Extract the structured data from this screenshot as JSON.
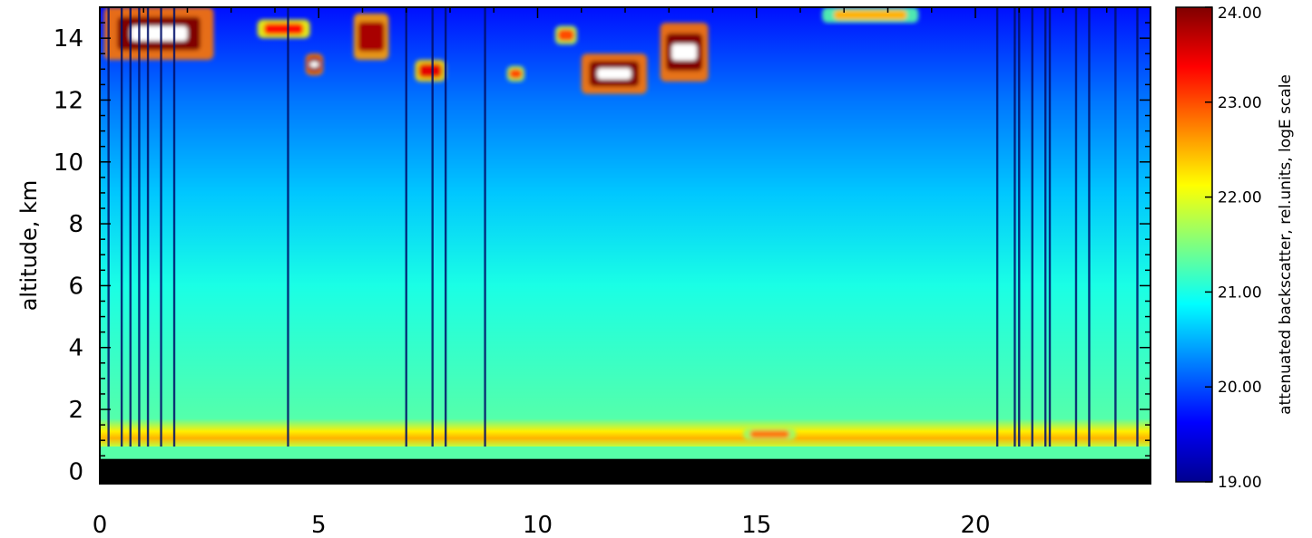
{
  "chart_data": {
    "type": "heatmap",
    "title": "",
    "xlabel": "",
    "ylabel": "altitude, km",
    "xlim": [
      0,
      24
    ],
    "ylim": [
      -0.4,
      15
    ],
    "x_ticks": [
      0,
      5,
      10,
      15,
      20
    ],
    "y_ticks": [
      0,
      2,
      4,
      6,
      8,
      10,
      12,
      14
    ],
    "colorbar": {
      "label": "attenuated backscatter, rel.units, logE scale",
      "range": [
        19.0,
        24.0
      ],
      "ticks": [
        "19.00",
        "20.00",
        "21.00",
        "22.00",
        "23.00",
        "24.00"
      ],
      "colormap": "jet",
      "saturated_color": "#ffffff"
    },
    "background_levels": [
      {
        "altitude_km": 15,
        "value": 19.7
      },
      {
        "altitude_km": 12,
        "value": 20.2
      },
      {
        "altitude_km": 9,
        "value": 20.6
      },
      {
        "altitude_km": 6,
        "value": 21.0
      },
      {
        "altitude_km": 3,
        "value": 21.2
      },
      {
        "altitude_km": 1.5,
        "value": 21.3
      }
    ],
    "boundary_layer": {
      "bottom_km": 0.8,
      "top_km": 1.7,
      "value": 22.2
    },
    "no_data_below_km": 0.4,
    "cloud_layers": [
      {
        "x_start": 0.1,
        "x_end": 2.6,
        "alt_bottom_km": 13.3,
        "alt_top_km": 15.0,
        "value": 24.0
      },
      {
        "x_start": 3.6,
        "x_end": 4.8,
        "alt_bottom_km": 14.0,
        "alt_top_km": 14.6,
        "value": 23.3
      },
      {
        "x_start": 4.7,
        "x_end": 5.1,
        "alt_bottom_km": 12.8,
        "alt_top_km": 13.5,
        "value": 24.0
      },
      {
        "x_start": 5.8,
        "x_end": 6.6,
        "alt_bottom_km": 13.3,
        "alt_top_km": 14.8,
        "value": 23.8
      },
      {
        "x_start": 7.2,
        "x_end": 7.9,
        "alt_bottom_km": 12.6,
        "alt_top_km": 13.3,
        "value": 23.5
      },
      {
        "x_start": 9.3,
        "x_end": 9.7,
        "alt_bottom_km": 12.6,
        "alt_top_km": 13.1,
        "value": 23.0
      },
      {
        "x_start": 10.4,
        "x_end": 10.9,
        "alt_bottom_km": 13.8,
        "alt_top_km": 14.4,
        "value": 23.0
      },
      {
        "x_start": 11.0,
        "x_end": 12.5,
        "alt_bottom_km": 12.2,
        "alt_top_km": 13.5,
        "value": 24.0
      },
      {
        "x_start": 12.8,
        "x_end": 13.9,
        "alt_bottom_km": 12.6,
        "alt_top_km": 14.5,
        "value": 24.0
      },
      {
        "x_start": 16.5,
        "x_end": 18.7,
        "alt_bottom_km": 14.5,
        "alt_top_km": 15.0,
        "value": 22.5
      },
      {
        "x_start": 14.7,
        "x_end": 15.9,
        "alt_bottom_km": 1.0,
        "alt_top_km": 1.4,
        "value": 22.8
      }
    ],
    "dropout_lines_x": [
      0.2,
      0.5,
      0.7,
      0.9,
      1.1,
      1.4,
      1.7,
      4.3,
      7.0,
      7.6,
      7.9,
      8.8,
      20.5,
      20.9,
      21.0,
      21.3,
      21.6,
      21.7,
      22.3,
      22.6,
      23.2,
      23.7
    ]
  }
}
